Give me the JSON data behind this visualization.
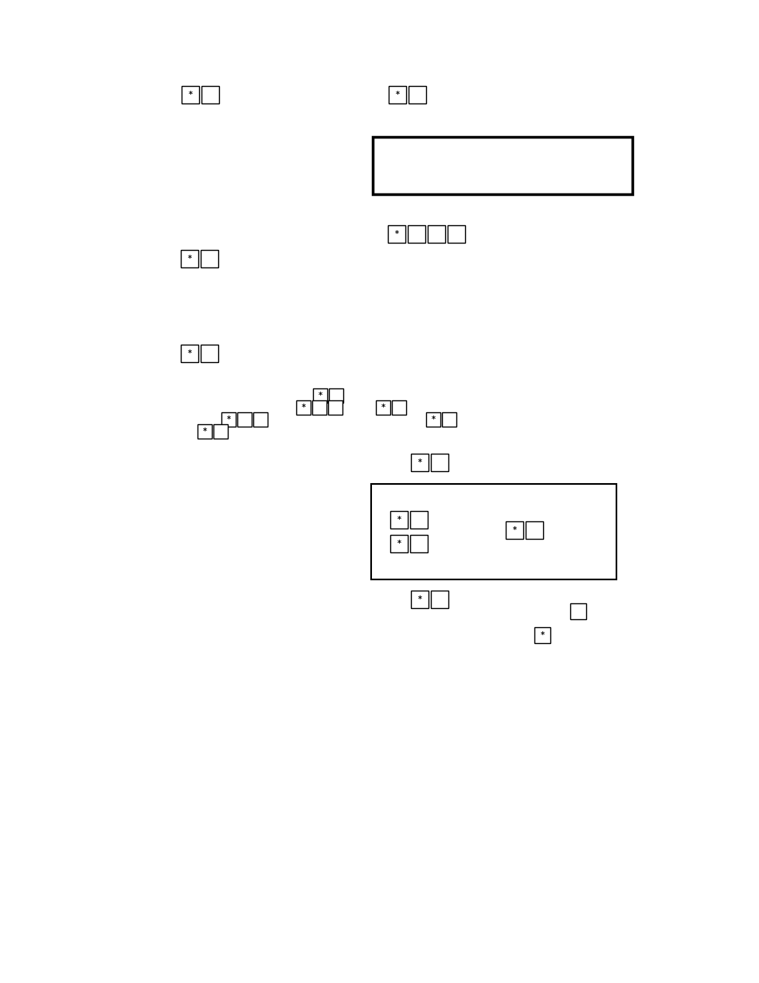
{
  "bg_color": "#ffffff",
  "page_width": 9.54,
  "page_height": 12.35,
  "dpi": 100
}
